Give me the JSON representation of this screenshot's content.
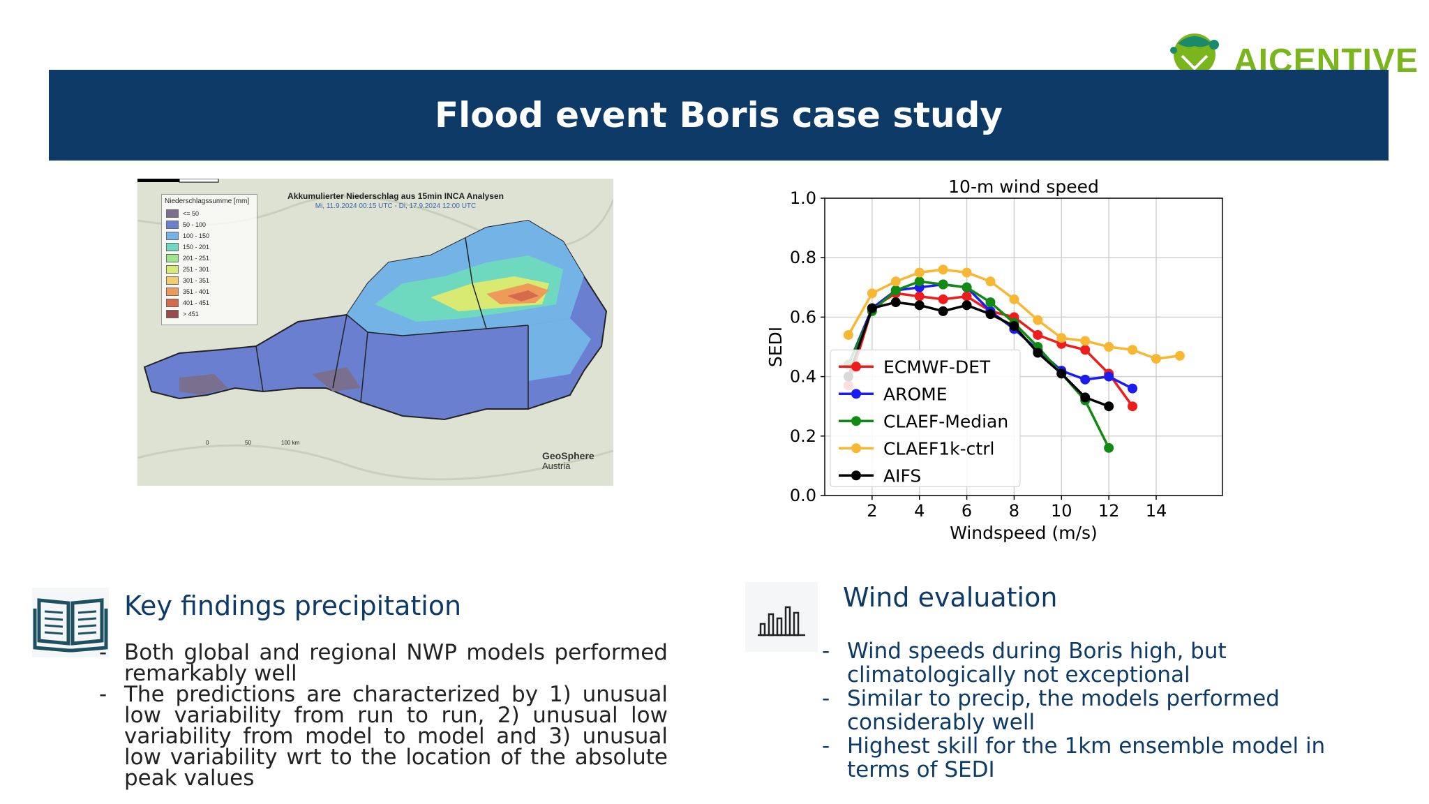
{
  "brand": {
    "name": "AICENTIVE",
    "color": "#7ab51d"
  },
  "header": {
    "title": "Flood event Boris case study",
    "background": "#0d3a66"
  },
  "map": {
    "title": "Akkumulierter Niederschlag aus 15min INCA Analysen",
    "subtitle": "Mi, 11.9.2024 00:15 UTC - Di, 17.9.2024 12:00 UTC",
    "legend_title": "Niederschlagssumme [mm]",
    "legend": [
      {
        "label": "<= 50",
        "color": "#7b6f8f"
      },
      {
        "label": "50 - 100",
        "color": "#6a7fd0"
      },
      {
        "label": "100 - 150",
        "color": "#74b3e6"
      },
      {
        "label": "150 - 201",
        "color": "#6fd9c0"
      },
      {
        "label": "201 - 251",
        "color": "#9fe58c"
      },
      {
        "label": "251 - 301",
        "color": "#d9ea72"
      },
      {
        "label": "301 - 351",
        "color": "#f2cd6a"
      },
      {
        "label": "351 - 401",
        "color": "#ee9a5a"
      },
      {
        "label": "401 - 451",
        "color": "#d56a4c"
      },
      {
        "label": "> 451",
        "color": "#9a4a4a"
      }
    ],
    "scale": {
      "l0": "0",
      "l1": "50",
      "l2": "100 km"
    },
    "source_name": "GeoSphere",
    "source_sub": "Austria"
  },
  "chart_data": {
    "type": "line",
    "title": "10-m wind speed",
    "xlabel": "Windspeed (m/s)",
    "ylabel": "SEDI",
    "xlim": [
      0,
      16.8
    ],
    "ylim": [
      0,
      1.0
    ],
    "xticks": [
      2,
      4,
      6,
      8,
      10,
      12,
      14
    ],
    "yticks": [
      0.0,
      0.2,
      0.4,
      0.6,
      0.8,
      1.0
    ],
    "grid": true,
    "legend_position": "lower-left",
    "series": [
      {
        "name": "ECMWF-DET",
        "color": "#ee1c1c",
        "x": [
          1,
          2,
          3,
          4,
          5,
          6,
          7,
          8,
          9,
          10,
          11,
          12,
          13
        ],
        "y": [
          0.37,
          0.63,
          0.68,
          0.67,
          0.66,
          0.67,
          0.62,
          0.6,
          0.54,
          0.51,
          0.49,
          0.41,
          0.3
        ]
      },
      {
        "name": "AROME",
        "color": "#1c1cee",
        "x": [
          1,
          2,
          3,
          4,
          5,
          6,
          7,
          8,
          9,
          10,
          11,
          12,
          13
        ],
        "y": [
          0.44,
          0.63,
          0.69,
          0.7,
          0.71,
          0.7,
          0.62,
          0.56,
          0.49,
          0.42,
          0.39,
          0.4,
          0.36
        ]
      },
      {
        "name": "CLAEF-Median",
        "color": "#108a10",
        "x": [
          1,
          2,
          3,
          4,
          5,
          6,
          7,
          8,
          9,
          10,
          11,
          12
        ],
        "y": [
          0.44,
          0.62,
          0.69,
          0.72,
          0.71,
          0.7,
          0.65,
          0.58,
          0.5,
          0.41,
          0.32,
          0.16
        ]
      },
      {
        "name": "CLAEF1k-ctrl",
        "color": "#f7b733",
        "x": [
          1,
          2,
          3,
          4,
          5,
          6,
          7,
          8,
          9,
          10,
          11,
          12,
          13,
          14,
          15
        ],
        "y": [
          0.54,
          0.68,
          0.72,
          0.75,
          0.76,
          0.75,
          0.72,
          0.66,
          0.59,
          0.53,
          0.52,
          0.5,
          0.49,
          0.46,
          0.47
        ]
      },
      {
        "name": "AIFS",
        "color": "#000000",
        "x": [
          1,
          2,
          3,
          4,
          5,
          6,
          7,
          8,
          9,
          10,
          11,
          12
        ],
        "y": [
          0.4,
          0.63,
          0.65,
          0.64,
          0.62,
          0.64,
          0.61,
          0.57,
          0.48,
          0.41,
          0.33,
          0.3
        ]
      }
    ]
  },
  "left_section": {
    "title": "Key findings precipitation",
    "icon": "open-book-icon",
    "bullets": [
      {
        "dash": "-",
        "text": "Both global and regional NWP models performed remarkably well"
      },
      {
        "dash": "-",
        "text": "The predictions are characterized by 1) unusual low variability from run to run, 2) unusual low variability from model to model and 3) unusual low variability wrt to the location of the absolute peak values"
      }
    ]
  },
  "right_section": {
    "title": "Wind evaluation",
    "icon": "bar-chart-icon",
    "bullets": [
      {
        "dash": "-",
        "text": "Wind speeds during Boris high, but climatologically not exceptional"
      },
      {
        "dash": "-",
        "text": "Similar to precip, the models performed considerably well"
      },
      {
        "dash": "-",
        "text": "Highest skill for the 1km ensemble model in terms of SEDI"
      }
    ]
  }
}
